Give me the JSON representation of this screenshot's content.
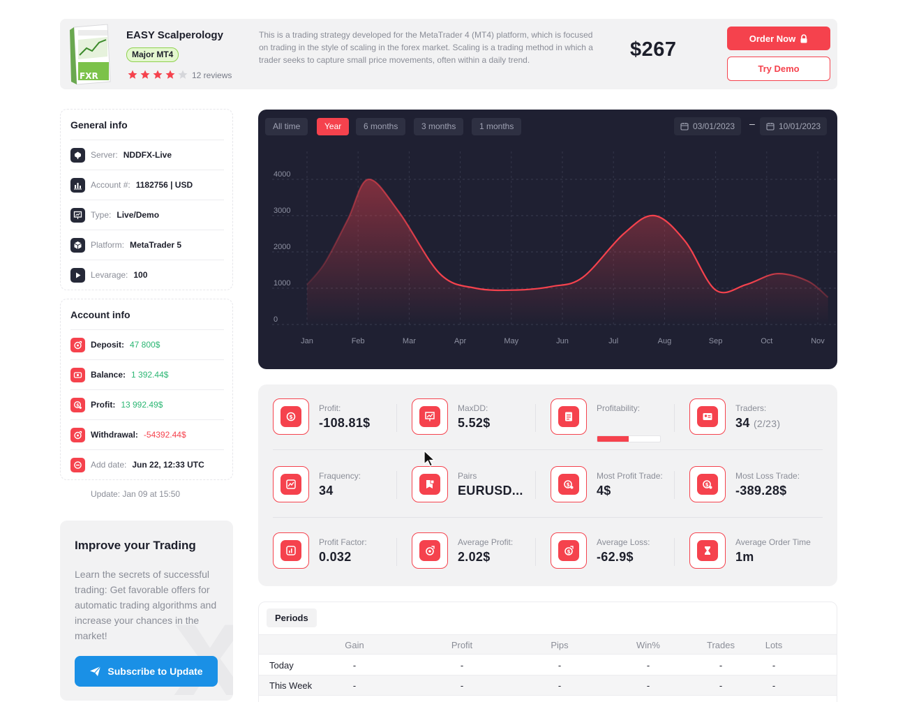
{
  "product": {
    "name": "EASY Scalperology",
    "badge": "Major MT4",
    "rating": 4,
    "rating_max": 5,
    "reviews": "12 reviews",
    "description": "This is a trading strategy developed for the MetaTrader 4 (MT4) platform, which is focused on trading in the style of scaling in the forex market. Scaling is a trading method in which a trader seeks to capture small price movements, often within a daily trend.",
    "price": "$267",
    "order_label": "Order Now",
    "demo_label": "Try Demo"
  },
  "general_info": {
    "title": "General info",
    "rows": [
      {
        "label": "Server:",
        "value": "NDDFX-Live",
        "icon": "server-icon"
      },
      {
        "label": "Account #:",
        "value": "1182756 | USD",
        "icon": "bar-chart-icon"
      },
      {
        "label": "Type:",
        "value": "Live/Demo",
        "icon": "presentation-icon"
      },
      {
        "label": "Platform:",
        "value": "MetaTrader 5",
        "icon": "box-icon"
      },
      {
        "label": "Levarage:",
        "value": "100",
        "icon": "play-icon"
      }
    ]
  },
  "account_info": {
    "title": "Account info",
    "rows": [
      {
        "label": "Deposit:",
        "value": "47 800$",
        "icon": "deposit-icon"
      },
      {
        "label": "Balance:",
        "value": "1 392.44$",
        "icon": "balance-icon"
      },
      {
        "label": "Profit:",
        "value": "13 992.49$",
        "icon": "profit-icon"
      },
      {
        "label": "Withdrawal:",
        "value": "-54392.44$",
        "icon": "withdrawal-icon"
      },
      {
        "label": "Add date:",
        "value": "Jun 22, 12:33 UTC",
        "icon": "clock-icon"
      }
    ],
    "update": "Update: Jan 09 at 15:50"
  },
  "promo": {
    "title": "Improve your Trading",
    "text": "Learn the secrets of successful trading: Get favorable offers for automatic trading algorithms and increase your chances in the market!",
    "button": "Subscribe to Update"
  },
  "chart_controls": {
    "tabs": [
      "All time",
      "Year",
      "6 months",
      "3 months",
      "1 months"
    ],
    "active_tab": "Year",
    "date_from": "03/01/2023",
    "date_to": "10/01/2023",
    "date_separator": "–"
  },
  "chart_data": {
    "type": "area",
    "categories": [
      "Jan",
      "Feb",
      "Mar",
      "Apr",
      "May",
      "Jun",
      "Jul",
      "Aug",
      "Sep",
      "Oct",
      "Nov"
    ],
    "x": [
      0.0,
      0.35,
      0.8,
      1.2,
      1.8,
      2.6,
      3.3,
      4.1,
      4.8,
      5.4,
      6.2,
      6.8,
      7.4,
      8.0,
      8.6,
      9.2,
      9.8,
      10.2
    ],
    "y": [
      1100,
      1700,
      2900,
      4000,
      3100,
      1400,
      1000,
      950,
      1050,
      1300,
      2500,
      3000,
      2300,
      950,
      1100,
      1400,
      1200,
      750
    ],
    "yticks": [
      0,
      1000,
      2000,
      3000,
      4000
    ],
    "ylim": [
      0,
      4000
    ],
    "line_color": "#f5424d",
    "grid": true,
    "title": "",
    "xlabel": "",
    "ylabel": ""
  },
  "stats": [
    {
      "label": "Profit:",
      "value": "-108.81$",
      "icon": "dollar-coin-icon"
    },
    {
      "label": "MaxDD:",
      "value": "5.52$",
      "icon": "chart-board-icon"
    },
    {
      "label": "Profitability:",
      "value": "",
      "icon": "document-icon",
      "progress": 0.5
    },
    {
      "label": "Traders:",
      "value": "34",
      "sub": "(2/23)",
      "icon": "id-card-icon"
    },
    {
      "label": "Fraquency:",
      "value": "34",
      "icon": "graph-icon"
    },
    {
      "label": "Pairs",
      "value": "EURUSD...",
      "icon": "book-icon"
    },
    {
      "label": "Most Profit Trade:",
      "value": "4$",
      "icon": "coin-up-icon"
    },
    {
      "label": "Most Loss Trade:",
      "value": "-389.28$",
      "icon": "coin-down-icon"
    },
    {
      "label": "Profit Factor:",
      "value": "0.032",
      "icon": "bar-icon"
    },
    {
      "label": "Average Profit:",
      "value": "2.02$",
      "icon": "wallet-icon"
    },
    {
      "label": "Average Loss:",
      "value": "-62.9$",
      "icon": "wallet-loss-icon"
    },
    {
      "label": "Average Order Time",
      "value": "1m",
      "icon": "hourglass-icon"
    }
  ],
  "periods": {
    "tab": "Periods",
    "columns": [
      "Gain",
      "Profit",
      "Pips",
      "Win%",
      "Trades",
      "Lots"
    ],
    "rows": [
      {
        "name": "Today",
        "cells": [
          "-",
          "-",
          "-",
          "-",
          "-",
          "-"
        ]
      },
      {
        "name": "This Week",
        "cells": [
          "-",
          "-",
          "-",
          "-",
          "-",
          "-"
        ]
      }
    ]
  },
  "colors": {
    "accent": "#f5424d",
    "chart_bg": "#1f2032",
    "positive": "#2bb673",
    "link_blue": "#1a90e6"
  }
}
